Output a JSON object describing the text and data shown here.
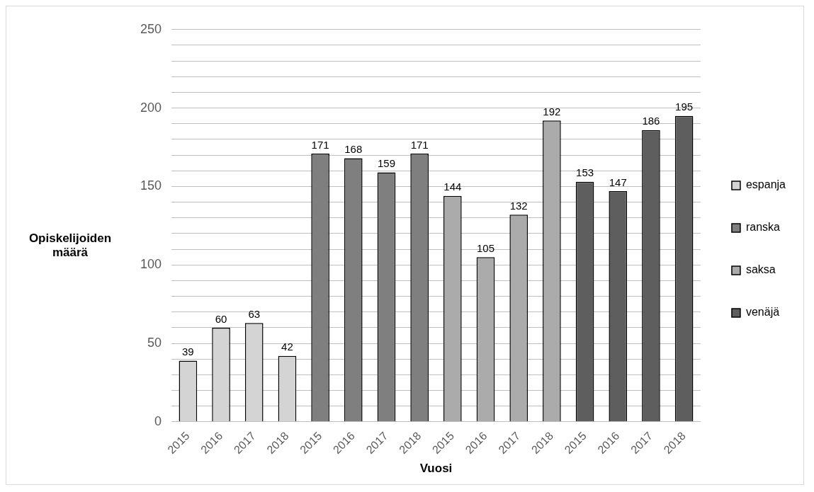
{
  "chart_data": {
    "type": "bar",
    "xlabel": "Vuosi",
    "ylabel": "Opiskelijoiden määrä",
    "categories": [
      "2015",
      "2016",
      "2017",
      "2018",
      "2015",
      "2016",
      "2017",
      "2018",
      "2015",
      "2016",
      "2017",
      "2018",
      "2015",
      "2016",
      "2017",
      "2018"
    ],
    "series": [
      {
        "name": "espanja",
        "color": "#d4d4d4",
        "values": [
          39,
          60,
          63,
          42,
          null,
          null,
          null,
          null,
          null,
          null,
          null,
          null,
          null,
          null,
          null,
          null
        ]
      },
      {
        "name": "ranska",
        "color": "#7f7f7f",
        "values": [
          null,
          null,
          null,
          null,
          171,
          168,
          159,
          171,
          null,
          null,
          null,
          null,
          null,
          null,
          null,
          null
        ]
      },
      {
        "name": "saksa",
        "color": "#ababab",
        "values": [
          null,
          null,
          null,
          null,
          null,
          null,
          null,
          null,
          144,
          105,
          132,
          192,
          null,
          null,
          null,
          null
        ]
      },
      {
        "name": "venäjä",
        "color": "#5e5e5e",
        "values": [
          null,
          null,
          null,
          null,
          null,
          null,
          null,
          null,
          null,
          null,
          null,
          null,
          153,
          147,
          186,
          195
        ]
      }
    ],
    "ylim": [
      0,
      250
    ],
    "yticks": [
      0,
      {
        "value": 10,
        "label": null
      },
      {
        "value": 20,
        "label": null
      },
      {
        "value": 30,
        "label": null
      },
      {
        "value": 40,
        "label": null
      },
      50,
      {
        "value": 60,
        "label": null
      },
      {
        "value": 70,
        "label": null
      },
      {
        "value": 80,
        "label": null
      },
      {
        "value": 90,
        "label": null
      },
      100,
      {
        "value": 110,
        "label": null
      },
      {
        "value": 120,
        "label": null
      },
      {
        "value": 130,
        "label": null
      },
      {
        "value": 140,
        "label": null
      },
      150,
      {
        "value": 160,
        "label": null
      },
      {
        "value": 170,
        "label": null
      },
      {
        "value": 180,
        "label": null
      },
      {
        "value": 190,
        "label": null
      },
      200,
      {
        "value": 210,
        "label": null
      },
      {
        "value": 220,
        "label": null
      },
      {
        "value": 230,
        "label": null
      },
      {
        "value": 240,
        "label": null
      },
      250
    ],
    "grid": "y",
    "legend": "right",
    "data_labels": true
  }
}
